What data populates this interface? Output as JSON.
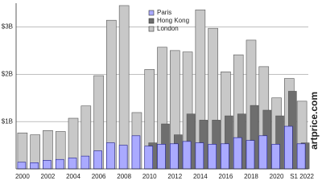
{
  "chart_data": {
    "type": "bar",
    "categories": [
      "2000",
      null,
      "2002",
      null,
      "2004",
      null,
      "2006",
      null,
      "2008",
      null,
      "2010",
      null,
      "2012",
      null,
      "2014",
      null,
      "2016",
      null,
      "2018",
      null,
      "2020",
      null,
      "S1 2022"
    ],
    "series": [
      {
        "name": "Paris",
        "color": "#aaaaff",
        "values": [
          0.14,
          0.13,
          0.18,
          0.2,
          0.23,
          0.27,
          0.38,
          0.55,
          0.5,
          0.7,
          0.48,
          0.52,
          0.53,
          0.58,
          0.55,
          0.52,
          0.53,
          0.66,
          0.6,
          0.7,
          0.52,
          0.9,
          0.53
        ]
      },
      {
        "name": "Hong Kong",
        "color": "#6e6e6e",
        "values": [
          null,
          null,
          null,
          null,
          null,
          null,
          null,
          null,
          null,
          null,
          0.55,
          0.95,
          0.72,
          1.16,
          1.03,
          1.03,
          1.12,
          1.16,
          1.34,
          1.24,
          1.12,
          1.64,
          0.55
        ]
      },
      {
        "name": "London",
        "color": "#c8c8c8",
        "values": [
          0.76,
          0.72,
          0.81,
          0.79,
          1.07,
          1.33,
          1.97,
          3.14,
          3.45,
          1.19,
          2.1,
          2.57,
          2.5,
          2.47,
          3.36,
          2.97,
          2.05,
          2.41,
          2.72,
          2.16,
          1.5,
          1.91,
          1.43
        ]
      }
    ],
    "ylim": [
      0,
      3.5
    ],
    "yticks": [
      {
        "value": 1,
        "label": "$1B"
      },
      {
        "value": 2,
        "label": "$2B"
      },
      {
        "value": 3,
        "label": "$3B"
      }
    ],
    "grid": true,
    "legend": "top",
    "annotations": [
      "artprice.com"
    ]
  }
}
